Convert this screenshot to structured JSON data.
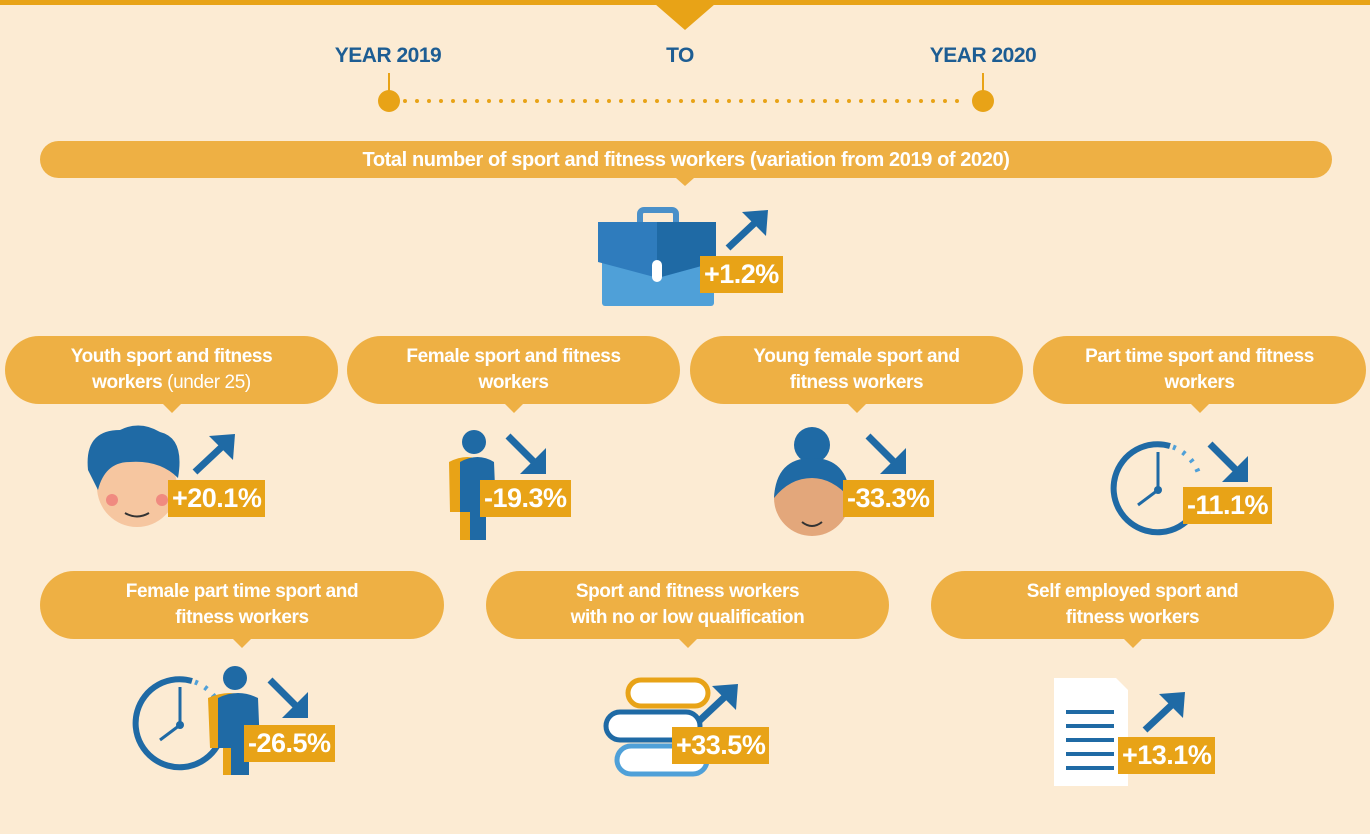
{
  "timeline": {
    "start": "YEAR 2019",
    "middle": "TO",
    "end": "YEAR 2020"
  },
  "total": {
    "label": "Total number of sport and fitness workers (variation from 2019 of 2020)",
    "value": "+1.2%"
  },
  "groups": [
    {
      "label": "Youth sport and fitness workers",
      "note": "(under 25)",
      "value": "+20.1%"
    },
    {
      "label": "Female sport and fitness workers",
      "value": "-19.3%"
    },
    {
      "label": "Young female sport and fitness workers",
      "value": "-33.3%"
    },
    {
      "label": "Part time sport and fitness workers",
      "value": "-11.1%"
    },
    {
      "label": "Female part time sport and fitness workers",
      "value": "-26.5%"
    },
    {
      "label": "Sport and fitness workers with no or low qualification",
      "value": "+33.5%"
    },
    {
      "label": "Self employed sport and fitness workers",
      "value": "+13.1%"
    }
  ]
}
